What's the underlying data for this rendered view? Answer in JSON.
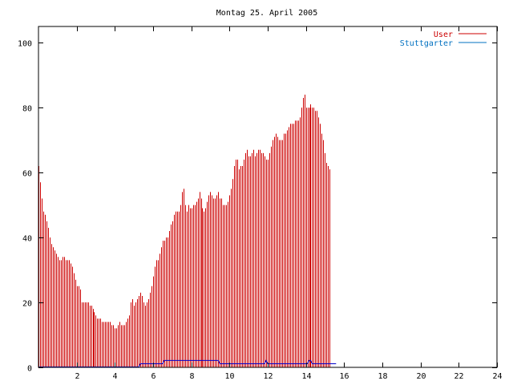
{
  "chart_data": {
    "type": "bar",
    "title": "Montag 25. April 2005",
    "xlabel": "",
    "ylabel": "",
    "xlim": [
      0,
      24
    ],
    "ylim": [
      0,
      105
    ],
    "x_ticks": [
      2,
      4,
      6,
      8,
      10,
      12,
      14,
      16,
      18,
      20,
      22,
      24
    ],
    "y_ticks": [
      0,
      20,
      40,
      60,
      80,
      100
    ],
    "grid": false,
    "legend_position": "top-right",
    "series": [
      {
        "name": "User",
        "kind": "impulses",
        "color": "#cc0000",
        "x_start": 0.0,
        "x_step": 0.0833,
        "values": [
          62,
          57,
          52,
          48,
          47,
          45,
          43,
          40,
          38,
          37,
          36,
          35,
          34,
          33,
          33,
          34,
          34,
          33,
          33,
          33,
          32,
          31,
          29,
          27,
          25,
          25,
          24,
          20,
          20,
          20,
          20,
          20,
          19,
          19,
          18,
          17,
          16,
          15,
          15,
          15,
          14,
          14,
          14,
          14,
          14,
          14,
          13,
          13,
          12,
          12,
          13,
          14,
          13,
          13,
          13,
          14,
          15,
          16,
          20,
          21,
          19,
          20,
          21,
          22,
          23,
          22,
          20,
          19,
          20,
          21,
          23,
          25,
          28,
          31,
          33,
          33,
          35,
          37,
          39,
          39,
          40,
          40,
          42,
          44,
          45,
          47,
          48,
          48,
          48,
          50,
          54,
          55,
          50,
          48,
          50,
          49,
          49,
          50,
          50,
          51,
          52,
          54,
          52,
          49,
          48,
          49,
          51,
          53,
          54,
          53,
          52,
          52,
          53,
          54,
          52,
          52,
          50,
          50,
          50,
          51,
          53,
          55,
          58,
          62,
          64,
          64,
          61,
          62,
          62,
          64,
          66,
          67,
          65,
          65,
          66,
          67,
          65,
          66,
          67,
          67,
          66,
          66,
          65,
          64,
          64,
          66,
          68,
          70,
          71,
          72,
          71,
          70,
          70,
          70,
          72,
          72,
          73,
          74,
          75,
          75,
          75,
          76,
          76,
          76,
          77,
          80,
          83,
          84,
          80,
          80,
          80,
          81,
          80,
          80,
          79,
          79,
          77,
          75,
          72,
          70,
          66,
          63,
          62,
          61
        ]
      },
      {
        "name": "Stuttgarter",
        "kind": "line",
        "color": "#0000cc",
        "x_start": 0.0,
        "x_step": 0.0833,
        "values": [
          0,
          0,
          0,
          0,
          0,
          0,
          0,
          0,
          0,
          0,
          0,
          0,
          0,
          0,
          0,
          0,
          0,
          0,
          0,
          0,
          0,
          0,
          0,
          0,
          0,
          0,
          0,
          0,
          0,
          0,
          0,
          0,
          0,
          0,
          0,
          0,
          0,
          0,
          0,
          0,
          0,
          0,
          0,
          0,
          0,
          0,
          0,
          0,
          0,
          0,
          0,
          0,
          0,
          0,
          0,
          0,
          0,
          0,
          0,
          0,
          0,
          0,
          0,
          0,
          1,
          1,
          1,
          1,
          1,
          1,
          1,
          1,
          1,
          1,
          1,
          1,
          1,
          1,
          1,
          2,
          2,
          2,
          2,
          2,
          2,
          2,
          2,
          2,
          2,
          2,
          2,
          2,
          2,
          2,
          2,
          2,
          2,
          2,
          2,
          2,
          2,
          2,
          2,
          2,
          2,
          2,
          2,
          2,
          2,
          2,
          2,
          2,
          2,
          2,
          1,
          1,
          1,
          1,
          1,
          1,
          1,
          1,
          1,
          1,
          1,
          1,
          1,
          1,
          1,
          1,
          1,
          1,
          1,
          1,
          1,
          1,
          1,
          1,
          1,
          1,
          1,
          1,
          1,
          2,
          1,
          1,
          1,
          1,
          1,
          1,
          1,
          1,
          1,
          1,
          1,
          1,
          1,
          1,
          1,
          1,
          1,
          1,
          1,
          1,
          1,
          1,
          1,
          1,
          1,
          1,
          2,
          2,
          1,
          1,
          1,
          1,
          1,
          1,
          1,
          1,
          1,
          1,
          1,
          1,
          1,
          1,
          1,
          1
        ]
      }
    ]
  }
}
